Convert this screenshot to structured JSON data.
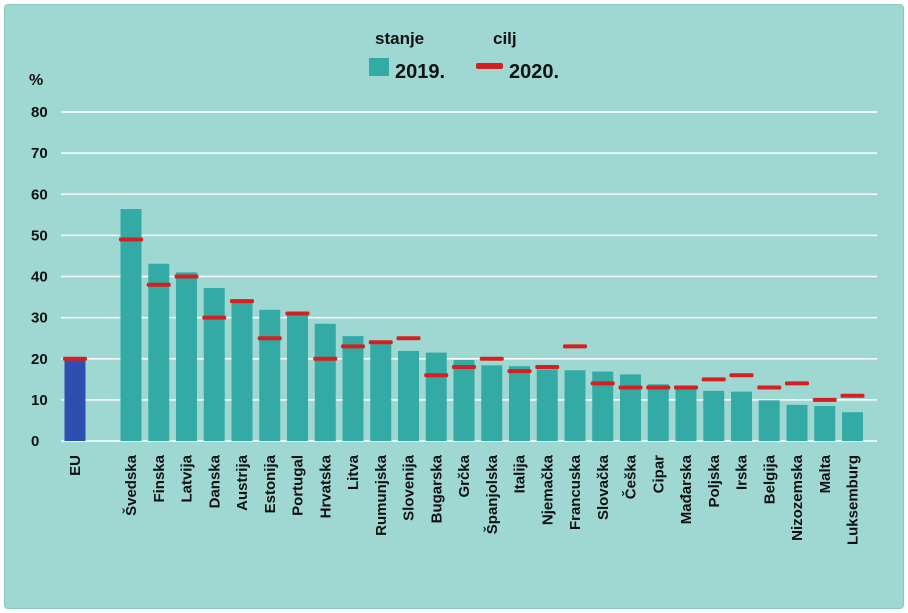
{
  "chart_data": {
    "type": "bar",
    "ylabel": "%",
    "ylim": [
      0,
      80
    ],
    "yticks": [
      0,
      10,
      20,
      30,
      40,
      50,
      60,
      70,
      80
    ],
    "grid": true,
    "legend": {
      "position": "top-center",
      "bar_title": "stanje",
      "bar_year": "2019.",
      "target_title": "cilj",
      "target_year": "2020."
    },
    "colors": {
      "bar": "#33aaa4",
      "eu_bar": "#2f4fb0",
      "target": "#d42020",
      "grid": "#ffffff",
      "background": "#9fd8d2"
    },
    "eu": {
      "label": "EU",
      "value": 19.7,
      "target": 20
    },
    "categories": [
      "Švedska",
      "Finska",
      "Latvija",
      "Danska",
      "Austrija",
      "Estonija",
      "Portugal",
      "Hrvatska",
      "Litva",
      "Rumunjska",
      "Slovenija",
      "Bugarska",
      "Grčka",
      "Španjolska",
      "Italija",
      "Njemačka",
      "Francuska",
      "Slovačka",
      "Češka",
      "Cipar",
      "Mađarska",
      "Poljska",
      "Irska",
      "Belgija",
      "Nizozemska",
      "Malta",
      "Luksemburg"
    ],
    "series": [
      {
        "name": "stanje 2019.",
        "values": [
          56.4,
          43.1,
          41.0,
          37.2,
          33.6,
          31.9,
          30.6,
          28.5,
          25.5,
          24.3,
          21.9,
          21.5,
          19.7,
          18.4,
          18.2,
          17.4,
          17.2,
          16.9,
          16.2,
          13.8,
          12.6,
          12.2,
          12.0,
          9.9,
          8.8,
          8.5,
          7.0
        ]
      },
      {
        "name": "cilj 2020.",
        "values": [
          49,
          38,
          40,
          30,
          34,
          25,
          31,
          20,
          23,
          24,
          25,
          16,
          18,
          20,
          17,
          18,
          23,
          14,
          13,
          13,
          13,
          15,
          16,
          13,
          14,
          10,
          11
        ]
      }
    ]
  }
}
